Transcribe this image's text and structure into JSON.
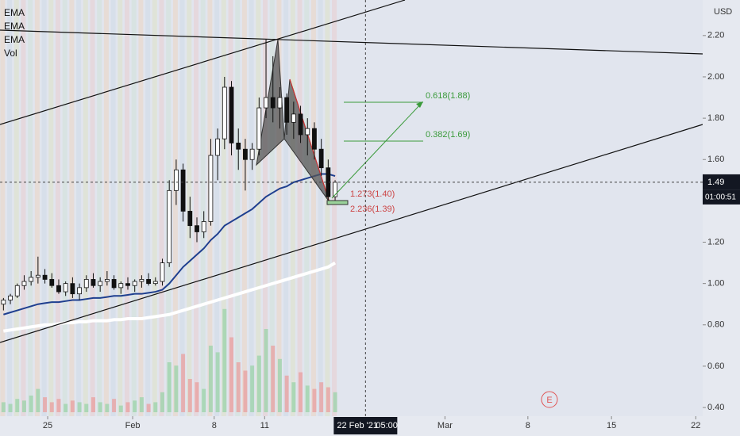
{
  "chart_data": {
    "type": "candlestick",
    "currency": "USD",
    "legend": [
      "EMA",
      "EMA",
      "EMA",
      "Vol"
    ],
    "xlim": [
      -0.5,
      101.2
    ],
    "xticks": [
      {
        "value": 6.4,
        "label": "25"
      },
      {
        "value": 18.7,
        "label": "Feb"
      },
      {
        "value": 30.5,
        "label": "8"
      },
      {
        "value": 37.8,
        "label": "11"
      },
      {
        "value": 63.9,
        "label": "Mar"
      },
      {
        "value": 75.9,
        "label": "8"
      },
      {
        "value": 88.0,
        "label": "15"
      },
      {
        "value": 100.2,
        "label": "22"
      }
    ],
    "crosshair": {
      "x": 52.4,
      "date": "22 Feb '21",
      "time": "05:00"
    },
    "ylim": [
      0.358,
      2.372
    ],
    "yticks": [
      {
        "value": 2.2,
        "label": "2.20"
      },
      {
        "value": 2.0,
        "label": "2.00"
      },
      {
        "value": 1.8,
        "label": "1.80"
      },
      {
        "value": 1.6,
        "label": "1.60"
      },
      {
        "value": 1.2,
        "label": "1.20"
      },
      {
        "value": 1.0,
        "label": "1.00"
      },
      {
        "value": 0.8,
        "label": "0.80"
      },
      {
        "value": 0.6,
        "label": "0.60"
      },
      {
        "value": 0.4,
        "label": "0.40"
      }
    ],
    "last_price": 1.49,
    "countdown": "01:00:51",
    "open": [
      0.9,
      0.92,
      0.94,
      0.99,
      1.01,
      1.03,
      1.04,
      1.02,
      0.99,
      0.96,
      1.0,
      0.95,
      0.98,
      1.02,
      0.99,
      1.01,
      1.02,
      0.98,
      1.0,
      0.99,
      1.01,
      1.02,
      1.0,
      1.01,
      1.1,
      1.45,
      1.55,
      1.35,
      1.28,
      1.25,
      1.3,
      1.62,
      1.7,
      1.95,
      1.68,
      1.65,
      1.6,
      1.65,
      1.85,
      1.9,
      1.85,
      1.9,
      1.78,
      1.82,
      1.72,
      1.75,
      1.65,
      1.56,
      1.42
    ],
    "high": [
      0.93,
      0.95,
      1.0,
      1.04,
      1.06,
      1.13,
      1.07,
      1.05,
      1.02,
      1.01,
      1.03,
      1.0,
      1.04,
      1.05,
      1.03,
      1.06,
      1.04,
      1.01,
      1.03,
      1.02,
      1.04,
      1.05,
      1.03,
      1.12,
      1.5,
      1.6,
      1.58,
      1.42,
      1.32,
      1.35,
      1.7,
      1.75,
      2.0,
      1.98,
      1.75,
      1.7,
      1.68,
      1.9,
      2.18,
      2.1,
      1.95,
      1.92,
      1.88,
      1.86,
      1.8,
      1.78,
      1.7,
      1.6,
      1.5
    ],
    "low": [
      0.87,
      0.9,
      0.93,
      0.97,
      0.99,
      1.0,
      1.0,
      0.98,
      0.95,
      0.94,
      0.93,
      0.92,
      0.96,
      0.98,
      0.96,
      0.99,
      0.97,
      0.95,
      0.97,
      0.96,
      0.98,
      0.99,
      0.99,
      0.99,
      1.08,
      1.38,
      1.3,
      1.22,
      1.2,
      1.22,
      1.28,
      1.5,
      1.65,
      1.62,
      1.55,
      1.45,
      1.55,
      1.62,
      1.8,
      1.78,
      1.75,
      1.72,
      1.7,
      1.68,
      1.62,
      1.6,
      1.52,
      1.38,
      1.4
    ],
    "close": [
      0.92,
      0.94,
      0.99,
      1.01,
      1.03,
      1.04,
      1.02,
      0.99,
      0.96,
      1.0,
      0.95,
      0.98,
      1.02,
      0.99,
      1.01,
      1.02,
      0.98,
      1.0,
      0.99,
      1.01,
      1.02,
      1.0,
      1.01,
      1.1,
      1.45,
      1.55,
      1.35,
      1.28,
      1.25,
      1.3,
      1.62,
      1.7,
      1.95,
      1.68,
      1.65,
      1.6,
      1.65,
      1.85,
      1.9,
      1.85,
      1.9,
      1.78,
      1.82,
      1.72,
      1.75,
      1.65,
      1.56,
      1.42,
      1.49
    ],
    "vlim": [
      0,
      250
    ],
    "volume": [
      6,
      5,
      8,
      7,
      10,
      14,
      9,
      6,
      8,
      5,
      7,
      6,
      5,
      9,
      6,
      5,
      8,
      4,
      6,
      7,
      9,
      5,
      6,
      12,
      30,
      28,
      35,
      20,
      18,
      14,
      40,
      36,
      62,
      45,
      30,
      25,
      28,
      34,
      50,
      40,
      32,
      22,
      18,
      24,
      16,
      14,
      18,
      15,
      12
    ],
    "series": [
      {
        "name": "EMA",
        "color": "#1f3f8f",
        "values": [
          0.85,
          0.86,
          0.87,
          0.88,
          0.89,
          0.9,
          0.905,
          0.91,
          0.91,
          0.915,
          0.92,
          0.92,
          0.925,
          0.93,
          0.93,
          0.935,
          0.94,
          0.94,
          0.945,
          0.95,
          0.95,
          0.955,
          0.96,
          0.97,
          1.0,
          1.04,
          1.08,
          1.11,
          1.14,
          1.17,
          1.21,
          1.24,
          1.28,
          1.3,
          1.32,
          1.34,
          1.36,
          1.39,
          1.42,
          1.44,
          1.46,
          1.47,
          1.49,
          1.5,
          1.51,
          1.52,
          1.53,
          1.53,
          1.52
        ]
      },
      {
        "name": "EMA",
        "color": "#ffffff",
        "values": [
          0.77,
          0.775,
          0.78,
          0.785,
          0.79,
          0.795,
          0.8,
          0.8,
          0.805,
          0.81,
          0.81,
          0.815,
          0.815,
          0.82,
          0.82,
          0.82,
          0.825,
          0.825,
          0.83,
          0.83,
          0.83,
          0.835,
          0.84,
          0.845,
          0.85,
          0.86,
          0.87,
          0.88,
          0.89,
          0.9,
          0.91,
          0.92,
          0.93,
          0.94,
          0.95,
          0.96,
          0.97,
          0.98,
          0.99,
          1.0,
          1.01,
          1.02,
          1.03,
          1.04,
          1.05,
          1.06,
          1.07,
          1.08,
          1.1
        ]
      }
    ],
    "annotations": [
      "0.618(1.88)",
      "0.382(1.69)",
      "1.273(1.40)",
      "2.236(1.39)"
    ],
    "event_marker": "E"
  }
}
